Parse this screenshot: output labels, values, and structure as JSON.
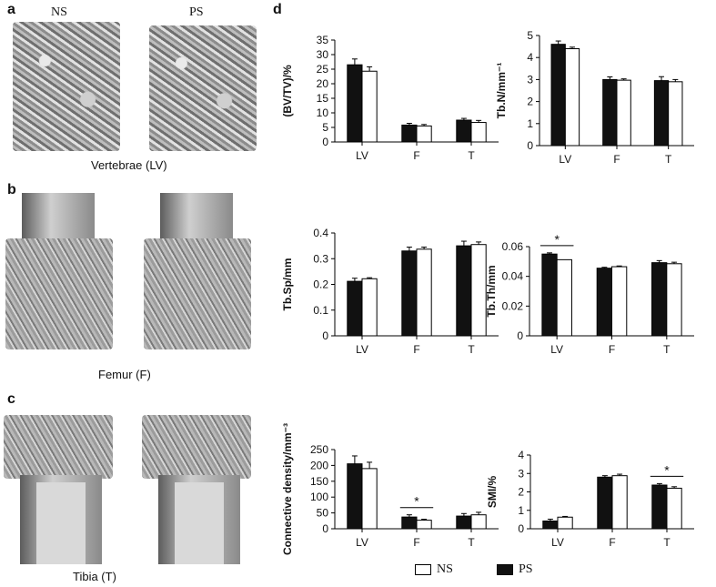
{
  "panels": {
    "a": {
      "letter": "a",
      "label_ns": "NS",
      "label_ps": "PS",
      "caption": "Vertebrae (LV)"
    },
    "b": {
      "letter": "b",
      "caption": "Femur (F)"
    },
    "c": {
      "letter": "c",
      "caption": "Tibia (T)"
    },
    "d": {
      "letter": "d"
    }
  },
  "legend": {
    "ns_label": "NS",
    "ps_label": "PS"
  },
  "colors": {
    "ps": "#111111",
    "ns": "#ffffff",
    "axis": "#000000"
  },
  "chart_data": [
    {
      "type": "bar",
      "id": "bvtv",
      "ylabel": "(BV/TV)/%",
      "categories": [
        "LV",
        "F",
        "T"
      ],
      "ylim": [
        0,
        35
      ],
      "yticks": [
        0,
        5,
        10,
        15,
        20,
        25,
        30,
        35
      ],
      "tick_labels": [
        "0",
        "5",
        "10",
        "15",
        "20",
        "25",
        "30",
        "35"
      ],
      "series": [
        {
          "name": "PS",
          "values": [
            26.5,
            5.8,
            7.5
          ],
          "errors": [
            2.0,
            0.6,
            0.6
          ]
        },
        {
          "name": "NS",
          "values": [
            24.3,
            5.5,
            6.7
          ],
          "errors": [
            1.5,
            0.5,
            0.7
          ]
        }
      ],
      "significance": []
    },
    {
      "type": "bar",
      "id": "tbn",
      "ylabel": "Tb.N/mm⁻¹",
      "categories": [
        "LV",
        "F",
        "T"
      ],
      "ylim": [
        0,
        5
      ],
      "yticks": [
        0,
        1,
        2,
        3,
        4,
        5
      ],
      "tick_labels": [
        "0",
        "1",
        "2",
        "3",
        "4",
        "5"
      ],
      "series": [
        {
          "name": "PS",
          "values": [
            4.6,
            3.0,
            2.95
          ],
          "errors": [
            0.15,
            0.12,
            0.18
          ]
        },
        {
          "name": "NS",
          "values": [
            4.4,
            2.97,
            2.9
          ],
          "errors": [
            0.07,
            0.06,
            0.1
          ]
        }
      ],
      "significance": []
    },
    {
      "type": "bar",
      "id": "tbsp",
      "ylabel": "Tb.Sp/mm",
      "categories": [
        "LV",
        "F",
        "T"
      ],
      "ylim": [
        0,
        0.4
      ],
      "yticks": [
        0,
        0.1,
        0.2,
        0.3,
        0.4
      ],
      "tick_labels": [
        "0",
        "0.1",
        "0.2",
        "0.3",
        "0.4"
      ],
      "series": [
        {
          "name": "PS",
          "values": [
            0.212,
            0.33,
            0.35
          ],
          "errors": [
            0.012,
            0.015,
            0.018
          ]
        },
        {
          "name": "NS",
          "values": [
            0.222,
            0.337,
            0.355
          ],
          "errors": [
            0.004,
            0.008,
            0.01
          ]
        }
      ],
      "significance": []
    },
    {
      "type": "bar",
      "id": "tbth",
      "ylabel": "Tb.Th/mm",
      "categories": [
        "LV",
        "F",
        "T"
      ],
      "ylim": [
        0,
        0.06
      ],
      "yticks": [
        0,
        0.02,
        0.04,
        0.06
      ],
      "tick_labels": [
        "0",
        "0.02",
        "0.04",
        "0.06"
      ],
      "series": [
        {
          "name": "PS",
          "values": [
            0.055,
            0.0455,
            0.0492
          ],
          "errors": [
            0.0008,
            0.0006,
            0.0014
          ]
        },
        {
          "name": "NS",
          "values": [
            0.0512,
            0.0465,
            0.0485
          ],
          "errors": [
            0.0,
            0.0005,
            0.001
          ]
        }
      ],
      "significance": [
        {
          "category": "LV",
          "label": "*"
        }
      ]
    },
    {
      "type": "bar",
      "id": "conn",
      "ylabel": "Connective density/mm⁻³",
      "categories": [
        "LV",
        "F",
        "T"
      ],
      "ylim": [
        0,
        250
      ],
      "yticks": [
        0,
        50,
        100,
        150,
        200,
        250
      ],
      "tick_labels": [
        "0",
        "50",
        "100",
        "150",
        "200",
        "250"
      ],
      "series": [
        {
          "name": "PS",
          "values": [
            205,
            37,
            40
          ],
          "errors": [
            25,
            7,
            8
          ]
        },
        {
          "name": "NS",
          "values": [
            190,
            27,
            44
          ],
          "errors": [
            20,
            3,
            8
          ]
        }
      ],
      "significance": [
        {
          "category": "F",
          "label": "*"
        }
      ]
    },
    {
      "type": "bar",
      "id": "smi",
      "ylabel": "SMI/%",
      "categories": [
        "LV",
        "F",
        "T"
      ],
      "ylim": [
        0,
        4
      ],
      "yticks": [
        0,
        1,
        2,
        3,
        4
      ],
      "tick_labels": [
        "0",
        "1",
        "2",
        "3",
        "4"
      ],
      "series": [
        {
          "name": "PS",
          "values": [
            0.42,
            2.8,
            2.37
          ],
          "errors": [
            0.1,
            0.08,
            0.08
          ]
        },
        {
          "name": "NS",
          "values": [
            0.63,
            2.88,
            2.2
          ],
          "errors": [
            0.04,
            0.08,
            0.08
          ]
        }
      ],
      "significance": [
        {
          "category": "T",
          "label": "*"
        }
      ]
    }
  ]
}
